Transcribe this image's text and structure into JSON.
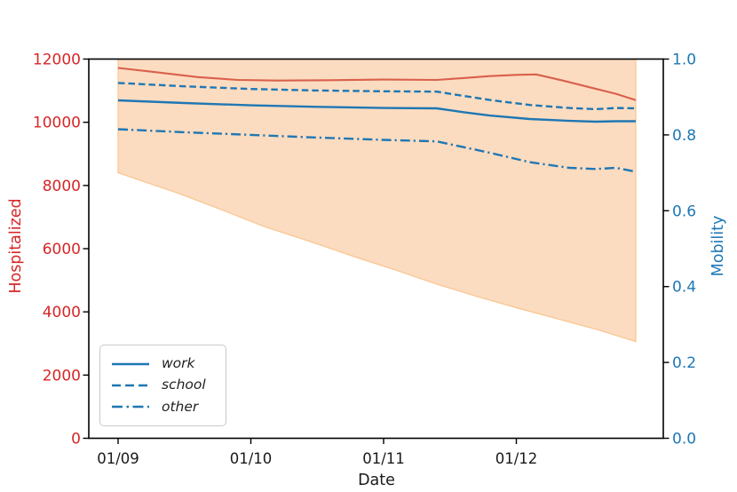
{
  "figure": {
    "background": "#ffffff"
  },
  "chart_data": {
    "type": "line",
    "title": "",
    "grid": false,
    "axes": {
      "x": {
        "label": "Date",
        "tick_labels": [
          "01/09",
          "01/10",
          "01/11",
          "01/12"
        ],
        "tick_positions_days": [
          0,
          1,
          2,
          3
        ],
        "range_days": [
          -0.22,
          4.1
        ],
        "tick_color": "#1a1a1a"
      },
      "left": {
        "label": "Hospitalized",
        "color": "#d62728",
        "min": 0,
        "max": 12000,
        "tick_values": [
          0,
          2000,
          4000,
          6000,
          8000,
          10000,
          12000
        ],
        "tick_labels": [
          "0",
          "2000",
          "4000",
          "6000",
          "8000",
          "10000",
          "12000"
        ]
      },
      "right": {
        "label": "Mobility",
        "color": "#1f77b4",
        "min": 0.0,
        "max": 1.0,
        "tick_values": [
          0.0,
          0.2,
          0.4,
          0.6,
          0.8,
          1.0
        ],
        "tick_labels": [
          "0.0",
          "0.2",
          "0.4",
          "0.6",
          "0.8",
          "1.0"
        ]
      }
    },
    "band": {
      "name": "hospitalized-uncertainty-band",
      "axis": "left",
      "fill": "#fcdcc0",
      "edge": "#fac48f",
      "upper_note": "upper bound clipped above y-axis max (12000)",
      "x": [
        0,
        0.45,
        0.8,
        1.1,
        1.45,
        1.8,
        2.1,
        2.4,
        2.7,
        3.0,
        3.3,
        3.6,
        3.9
      ],
      "lower": [
        8400,
        7760,
        7200,
        6700,
        6220,
        5720,
        5310,
        4880,
        4490,
        4130,
        3790,
        3450,
        3060
      ]
    },
    "series": [
      {
        "name": "hospitalized",
        "axis": "left",
        "color": "#d9604c",
        "style": "solid",
        "width": 2.1,
        "x": [
          0,
          0.25,
          0.6,
          0.9,
          1.2,
          1.6,
          2.0,
          2.4,
          2.6,
          2.8,
          3.0,
          3.15,
          3.35,
          3.55,
          3.75,
          3.9
        ],
        "y": [
          11720,
          11600,
          11430,
          11340,
          11320,
          11330,
          11350,
          11340,
          11400,
          11460,
          11500,
          11515,
          11320,
          11110,
          10900,
          10700
        ]
      },
      {
        "name": "work",
        "axis": "right",
        "color": "#1f77b4",
        "style": "solid",
        "width": 2.4,
        "x": [
          0,
          0.5,
          1.0,
          1.5,
          2.0,
          2.4,
          2.6,
          2.8,
          3.1,
          3.4,
          3.6,
          3.75,
          3.9
        ],
        "y": [
          0.891,
          0.884,
          0.878,
          0.874,
          0.871,
          0.87,
          0.86,
          0.851,
          0.842,
          0.837,
          0.835,
          0.836,
          0.836
        ]
      },
      {
        "name": "school",
        "axis": "right",
        "color": "#1f77b4",
        "style": "dashed",
        "width": 2.4,
        "x": [
          0,
          0.5,
          1.0,
          1.5,
          2.0,
          2.4,
          2.6,
          2.8,
          3.1,
          3.4,
          3.6,
          3.75,
          3.9
        ],
        "y": [
          0.937,
          0.928,
          0.921,
          0.917,
          0.915,
          0.914,
          0.903,
          0.892,
          0.879,
          0.871,
          0.868,
          0.871,
          0.87
        ]
      },
      {
        "name": "other",
        "axis": "right",
        "color": "#1f77b4",
        "style": "dashdot",
        "width": 2.4,
        "x": [
          0,
          0.5,
          1.0,
          1.5,
          2.0,
          2.4,
          2.6,
          2.8,
          3.1,
          3.4,
          3.6,
          3.75,
          3.9
        ],
        "y": [
          0.815,
          0.807,
          0.8,
          0.793,
          0.787,
          0.783,
          0.768,
          0.753,
          0.728,
          0.713,
          0.71,
          0.713,
          0.703
        ]
      }
    ],
    "legend": {
      "position": "lower-left",
      "items": [
        {
          "label": "work",
          "style": "solid",
          "color": "#1f77b4"
        },
        {
          "label": "school",
          "style": "dashed",
          "color": "#1f77b4"
        },
        {
          "label": "other",
          "style": "dashdot",
          "color": "#1f77b4"
        }
      ]
    }
  }
}
